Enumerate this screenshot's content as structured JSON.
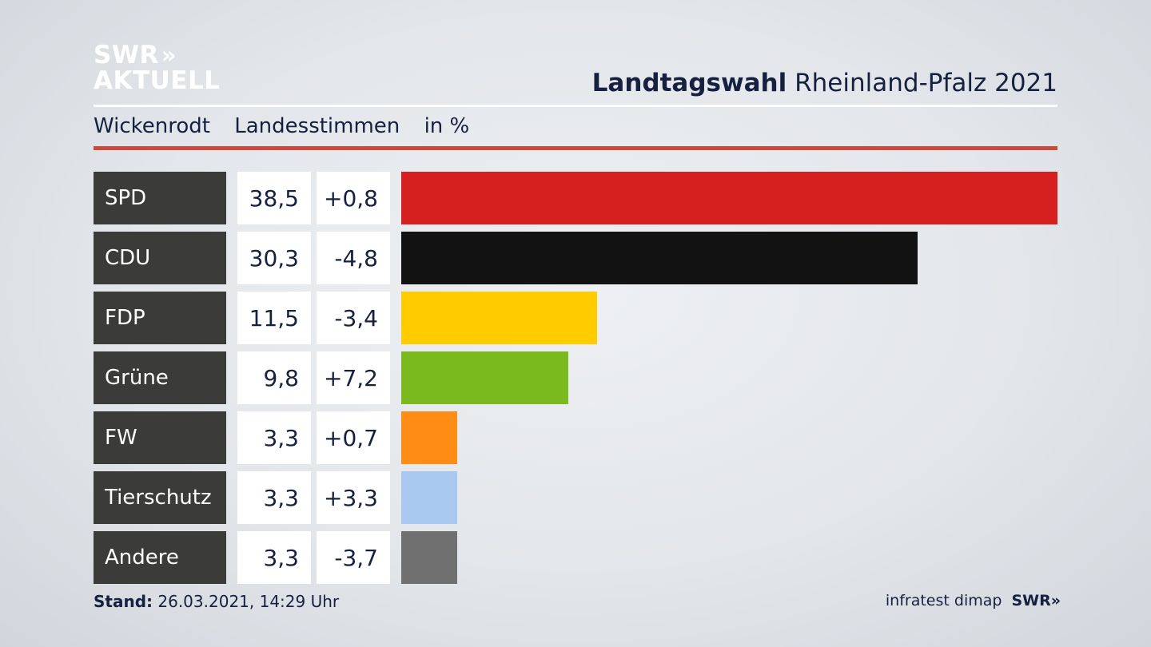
{
  "logo": {
    "line1": "SWR",
    "chevrons": "»",
    "line2": "AKTUELL"
  },
  "header": {
    "title_bold": "Landtagswahl",
    "title_rest": "Rheinland-Pfalz 2021",
    "place": "Wickenrodt",
    "measure": "Landesstimmen",
    "unit": "in %"
  },
  "chart_data": {
    "type": "bar",
    "orientation": "horizontal",
    "categories": [
      "SPD",
      "CDU",
      "FDP",
      "Grüne",
      "FW",
      "Tierschutz",
      "Andere"
    ],
    "values": [
      38.5,
      30.3,
      11.5,
      9.8,
      3.3,
      3.3,
      3.3
    ],
    "value_labels": [
      "38,5",
      "30,3",
      "11,5",
      "9,8",
      "3,3",
      "3,3",
      "3,3"
    ],
    "change_labels": [
      "+0,8",
      "-4,8",
      "-3,4",
      "+7,2",
      "+0,7",
      "+3,3",
      "-3,7"
    ],
    "changes": [
      0.8,
      -4.8,
      -3.4,
      7.2,
      0.7,
      3.3,
      -3.7
    ],
    "colors": [
      "#d61f1f",
      "#121212",
      "#ffcc00",
      "#7aba1e",
      "#ff8c14",
      "#a8c8f0",
      "#707070"
    ],
    "xlim": [
      0,
      38.5
    ],
    "grid": false
  },
  "footer": {
    "stand_label": "Stand:",
    "stand_value": "26.03.2021, 14:29 Uhr",
    "source": "infratest dimap",
    "brand": "SWR",
    "brand_chevrons": "»"
  }
}
